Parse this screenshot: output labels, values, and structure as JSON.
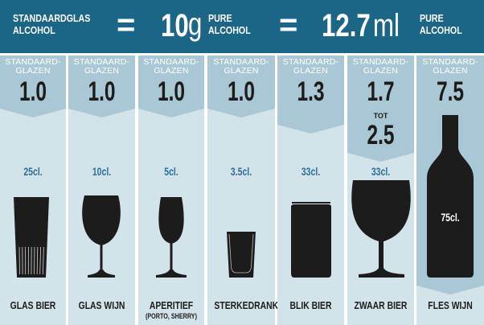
{
  "header": {
    "left_line1": "STANDAARDGLAS",
    "left_line2": "ALCOHOL",
    "equals": "=",
    "grams": "10",
    "grams_unit": "g",
    "mid_line1": "PURE",
    "mid_line2": "ALCOHOL",
    "ml": "12.7",
    "ml_unit": "ml",
    "right_line1": "PURE",
    "right_line2": "ALCOHOL"
  },
  "colors": {
    "header": "#1b6587",
    "band": "#a9c7d4",
    "body": "#d3e3ea",
    "volume_text": "#2d6f96",
    "silhouette": "#1c1c1c"
  },
  "columns": [
    {
      "title1": "STANDAARD-",
      "title2": "GLAZEN",
      "value": "1.0",
      "volume": "25cl.",
      "label": "GLAS BIER",
      "icon": "beer-glass-icon"
    },
    {
      "title1": "STANDAARD-",
      "title2": "GLAZEN",
      "value": "1.0",
      "volume": "10cl.",
      "label": "GLAS WIJN",
      "icon": "wine-glass-icon"
    },
    {
      "title1": "STANDAARD-",
      "title2": "GLAZEN",
      "value": "1.0",
      "volume": "5cl.",
      "label": "APERITIEF",
      "sublabel": "(PORTO, SHERRY)",
      "icon": "aperitif-glass-icon"
    },
    {
      "title1": "STANDAARD-",
      "title2": "GLAZEN",
      "value": "1.0",
      "volume": "3.5cl.",
      "label": "STERKEDRANK",
      "icon": "shot-glass-icon"
    },
    {
      "title1": "STANDAARD-",
      "title2": "GLAZEN",
      "value": "1.3",
      "volume": "33cl.",
      "label": "BLIK BIER",
      "icon": "beer-can-icon"
    },
    {
      "title1": "STANDAARD-",
      "title2": "GLAZEN",
      "value": "1.7",
      "value_connector": "TOT",
      "value2": "2.5",
      "volume": "33cl.",
      "label": "ZWAAR BIER",
      "icon": "goblet-glass-icon"
    },
    {
      "title1": "STANDAARD-",
      "title2": "GLAZEN",
      "value": "7.5",
      "volume": "75cl.",
      "label": "FLES WIJN",
      "icon": "wine-bottle-icon"
    }
  ]
}
